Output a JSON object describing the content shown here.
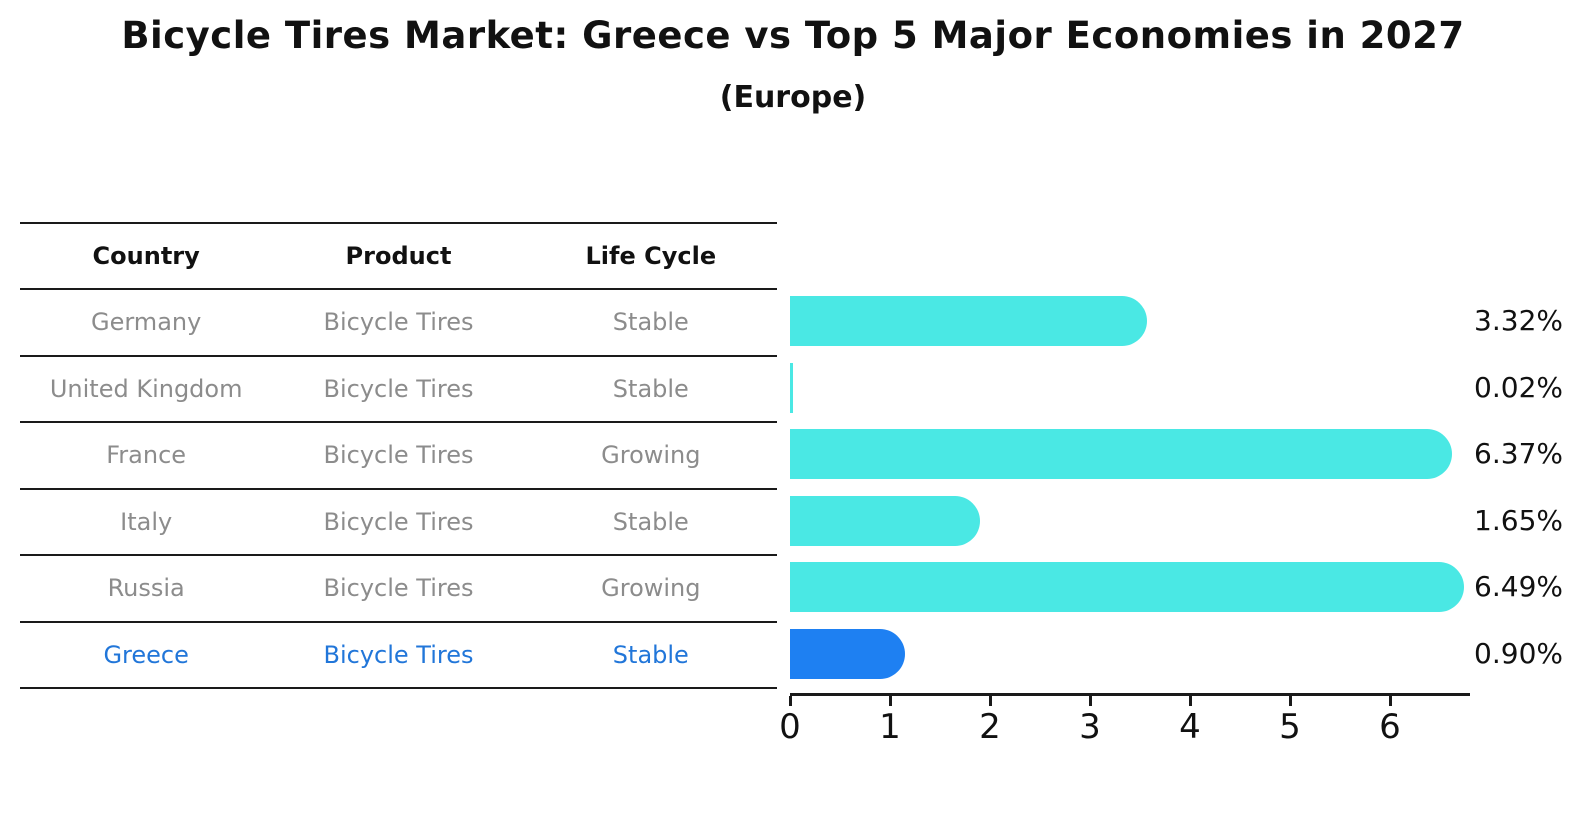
{
  "title": "Bicycle Tires Market: Greece vs Top 5 Major Economies in 2027",
  "subtitle": "(Europe)",
  "table": {
    "headers": [
      "Country",
      "Product",
      "Life Cycle"
    ],
    "rows": [
      {
        "country": "Germany",
        "product": "Bicycle Tires",
        "life_cycle": "Stable",
        "highlight": false
      },
      {
        "country": "United Kingdom",
        "product": "Bicycle Tires",
        "life_cycle": "Stable",
        "highlight": false
      },
      {
        "country": "France",
        "product": "Bicycle Tires",
        "life_cycle": "Growing",
        "highlight": false
      },
      {
        "country": "Italy",
        "product": "Bicycle Tires",
        "life_cycle": "Stable",
        "highlight": false
      },
      {
        "country": "Russia",
        "product": "Bicycle Tires",
        "life_cycle": "Growing",
        "highlight": false
      },
      {
        "country": "Greece",
        "product": "Bicycle Tires",
        "life_cycle": "Stable",
        "highlight": true
      }
    ]
  },
  "chart_data": {
    "type": "bar",
    "orientation": "horizontal",
    "title": "Bicycle Tires Market: Greece vs Top 5 Major Economies in 2027",
    "subtitle": "(Europe)",
    "categories": [
      "Germany",
      "United Kingdom",
      "France",
      "Italy",
      "Russia",
      "Greece"
    ],
    "values": [
      3.32,
      0.02,
      6.37,
      1.65,
      6.49,
      0.9
    ],
    "value_labels": [
      "3.32%",
      "0.02%",
      "6.37%",
      "1.65%",
      "6.49%",
      "0.90%"
    ],
    "xlabel": "",
    "ylabel": "",
    "xlim": [
      0,
      6.8
    ],
    "xticks": [
      0,
      1,
      2,
      3,
      4,
      5,
      6
    ],
    "grid": false,
    "legend": false,
    "highlight_category": "Greece",
    "highlight_border_style": "dotted",
    "colors": {
      "bar_default": "#4AE8E4",
      "bar_highlight": "#1E80F2",
      "highlight_text": "#2176D9",
      "text_dark": "#111111",
      "text_muted": "#8C8C8C",
      "axis": "#1A1A1A"
    }
  }
}
